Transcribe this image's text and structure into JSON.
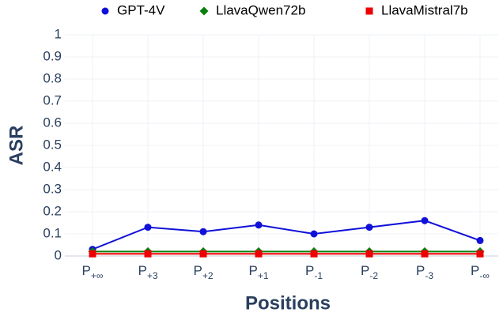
{
  "chart_data": {
    "type": "line",
    "xlabel": "Positions",
    "ylabel": "ASR",
    "categories": [
      "P+∞",
      "P+3",
      "P+2",
      "P+1",
      "P-1",
      "P-2",
      "P-3",
      "P-∞"
    ],
    "series": [
      {
        "name": "GPT-4V",
        "color": "#1010d8",
        "marker": "circle",
        "values": [
          0.03,
          0.13,
          0.11,
          0.14,
          0.1,
          0.13,
          0.16,
          0.07
        ]
      },
      {
        "name": "LlavaQwen72b",
        "color": "#0b7f0b",
        "marker": "diamond",
        "values": [
          0.02,
          0.02,
          0.02,
          0.02,
          0.02,
          0.02,
          0.02,
          0.02
        ]
      },
      {
        "name": "LlavaMistral7b",
        "color": "#ee0000",
        "marker": "square",
        "values": [
          0.01,
          0.01,
          0.01,
          0.01,
          0.01,
          0.01,
          0.01,
          0.01
        ]
      }
    ],
    "ylim": [
      -0.02,
      1
    ],
    "yticks": [
      0,
      0.1,
      0.2,
      0.3,
      0.4,
      0.5,
      0.6,
      0.7,
      0.8,
      0.9,
      1
    ],
    "grid": true,
    "legend": "top"
  }
}
